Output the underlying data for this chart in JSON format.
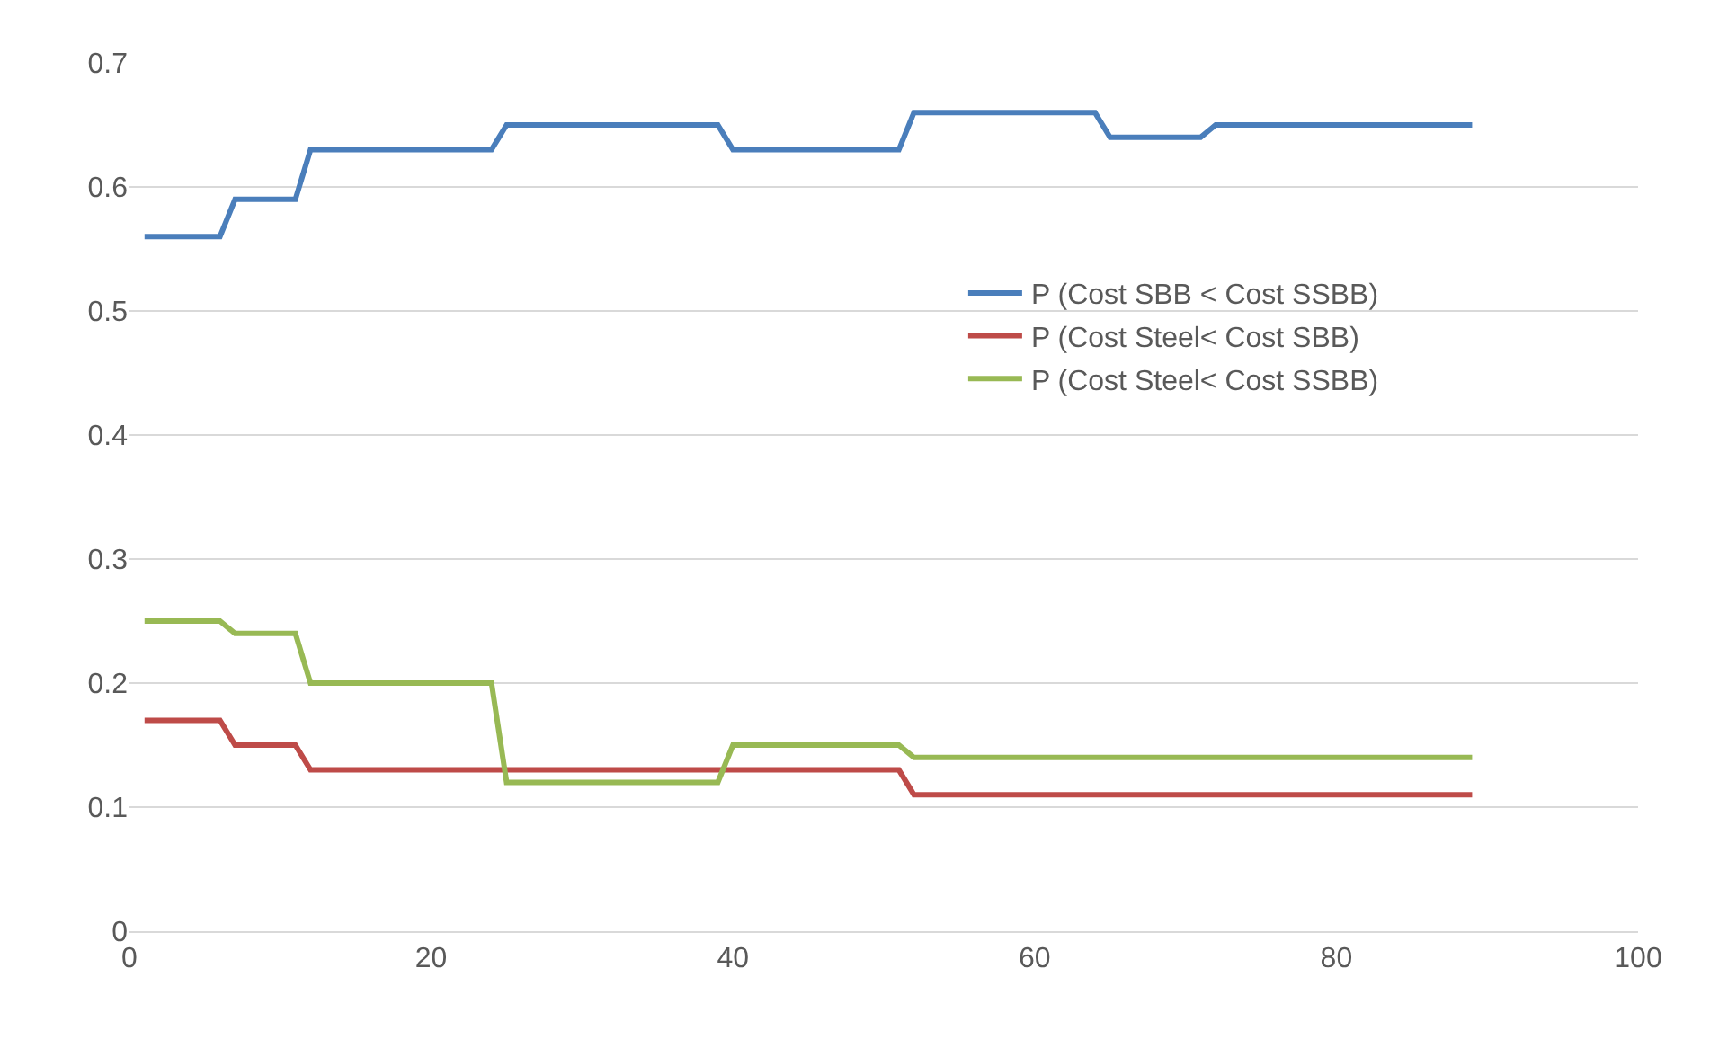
{
  "chart_data": {
    "type": "line",
    "x": [
      1,
      6,
      7,
      11,
      12,
      24,
      25,
      39,
      40,
      51,
      52,
      64,
      65,
      71,
      72,
      89
    ],
    "series": [
      {
        "name": "P (Cost SBB < Cost SSBB)",
        "color": "#4a7ebb",
        "values": [
          0.56,
          0.56,
          0.59,
          0.59,
          0.63,
          0.63,
          0.65,
          0.65,
          0.63,
          0.63,
          0.66,
          0.66,
          0.64,
          0.64,
          0.65,
          0.65
        ]
      },
      {
        "name": "P (Cost Steel< Cost SBB)",
        "color": "#be4b48",
        "values": [
          0.17,
          0.17,
          0.15,
          0.15,
          0.13,
          0.13,
          0.13,
          0.13,
          0.13,
          0.13,
          0.11,
          0.11,
          0.11,
          0.11,
          0.11,
          0.11
        ]
      },
      {
        "name": "P (Cost Steel< Cost SSBB)",
        "color": "#98b954",
        "values": [
          0.25,
          0.25,
          0.24,
          0.24,
          0.2,
          0.2,
          0.12,
          0.12,
          0.15,
          0.15,
          0.14,
          0.14,
          0.14,
          0.14,
          0.14,
          0.14
        ]
      }
    ],
    "xlim": [
      0,
      100
    ],
    "xticks": [
      0,
      20,
      40,
      60,
      80,
      100
    ],
    "ylim": [
      0,
      0.7
    ],
    "yticks": [
      0,
      0.1,
      0.2,
      0.3,
      0.4,
      0.5,
      0.6,
      0.7
    ],
    "grid": "y",
    "legend": "right",
    "marker": "none",
    "line_style": "solid"
  }
}
